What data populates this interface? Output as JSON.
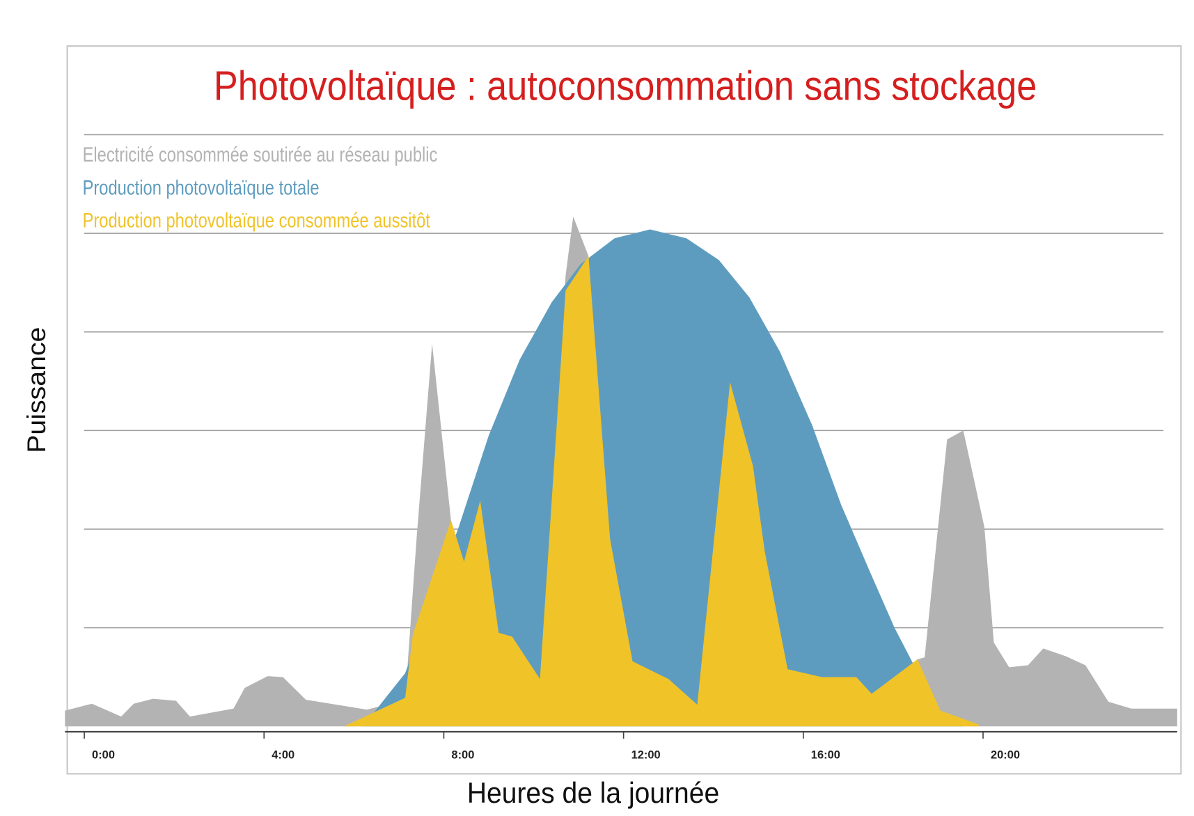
{
  "chart_data": {
    "type": "area",
    "title": "Photovoltaïque : autoconsommation sans stockage",
    "x_label": "Heures de la journée",
    "y_label": "Puissance",
    "xlim": [
      -0.43,
      24.32
    ],
    "ylim": [
      0,
      6
    ],
    "xticks": [
      {
        "value": 0,
        "label": "0:00"
      },
      {
        "value": 4,
        "label": "4:00"
      },
      {
        "value": 8,
        "label": "8:00"
      },
      {
        "value": 12,
        "label": "12:00"
      },
      {
        "value": 16,
        "label": "16:00"
      },
      {
        "value": 20,
        "label": "20:00"
      }
    ],
    "yticks": [
      1,
      2,
      3,
      4,
      5,
      6
    ],
    "grid": true,
    "legend": "upper left",
    "series": [
      {
        "name": "Electricité consommée soutirée au réseau public",
        "color": "#b3b3b3",
        "x": [
          -0.43,
          0.17,
          0.82,
          1.1,
          1.53,
          2.04,
          2.35,
          3.32,
          3.57,
          4.08,
          4.42,
          4.93,
          6.29,
          7.14,
          7.4,
          7.74,
          8.16,
          8.45,
          8.81,
          9.22,
          9.52,
          10.14,
          10.71,
          10.88,
          11.22,
          11.7,
          12.2,
          13.0,
          13.64,
          14.37,
          14.88,
          15.14,
          15.65,
          16.41,
          17.18,
          17.52,
          18.54,
          18.7,
          19.2,
          19.56,
          20.03,
          20.24,
          20.58,
          21.0,
          21.34,
          21.85,
          22.28,
          22.79,
          23.3,
          24.32
        ],
        "values": [
          0.16,
          0.23,
          0.1,
          0.23,
          0.28,
          0.26,
          0.1,
          0.18,
          0.39,
          0.51,
          0.5,
          0.27,
          0.17,
          0.27,
          1.94,
          3.88,
          2.09,
          1.67,
          2.29,
          0.95,
          0.91,
          0.48,
          4.57,
          5.17,
          4.77,
          1.9,
          0.66,
          0.48,
          0.22,
          3.49,
          2.64,
          1.78,
          0.58,
          0.5,
          0.5,
          0.33,
          0.68,
          0.7,
          2.91,
          3.0,
          2.02,
          0.85,
          0.6,
          0.62,
          0.79,
          0.71,
          0.62,
          0.25,
          0.18,
          0.18
        ]
      },
      {
        "name": "Production photovoltaïque totale",
        "color": "#5e9cbf",
        "x": [
          6.2,
          7.14,
          8.33,
          9.0,
          9.69,
          10.4,
          11.05,
          11.8,
          12.59,
          13.4,
          14.12,
          14.8,
          15.48,
          16.2,
          16.84,
          17.5,
          18.03,
          18.6,
          19.05,
          19.56
        ],
        "values": [
          0,
          0.54,
          2.02,
          2.95,
          3.72,
          4.3,
          4.69,
          4.95,
          5.04,
          4.95,
          4.73,
          4.35,
          3.8,
          3.05,
          2.25,
          1.55,
          1.0,
          0.5,
          0.16,
          0
        ]
      },
      {
        "name": "Production photovoltaïque consommée aussitôt",
        "color": "#f0c329",
        "x": [
          5.78,
          7.14,
          7.31,
          8.16,
          8.45,
          8.81,
          9.22,
          9.52,
          10.14,
          10.71,
          11.22,
          11.7,
          12.2,
          13.0,
          13.64,
          14.37,
          14.88,
          15.14,
          15.65,
          16.41,
          17.18,
          17.52,
          18.54,
          19.05,
          19.9
        ],
        "values": [
          0,
          0.29,
          0.93,
          2.09,
          1.67,
          2.29,
          0.95,
          0.91,
          0.48,
          4.42,
          4.77,
          1.9,
          0.66,
          0.48,
          0.22,
          3.49,
          2.64,
          1.78,
          0.58,
          0.5,
          0.5,
          0.33,
          0.68,
          0.16,
          0.02
        ]
      }
    ]
  }
}
